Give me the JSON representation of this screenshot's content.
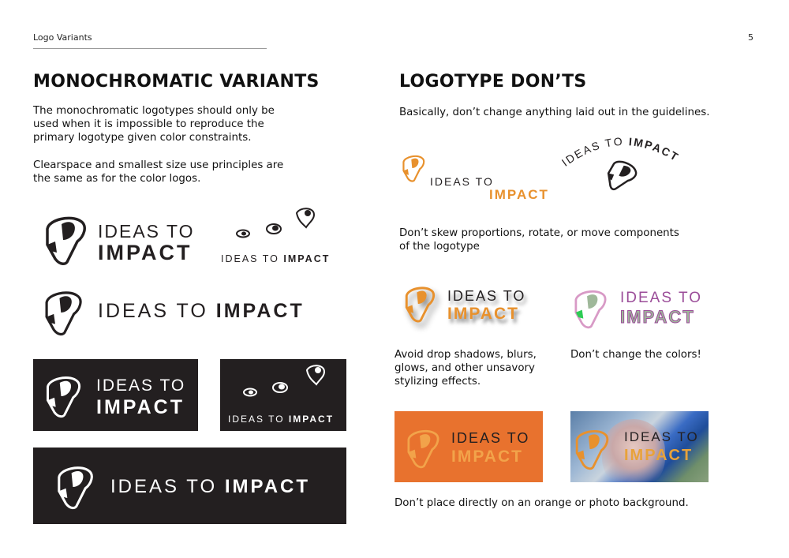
{
  "header": {
    "section_title": "Logo Variants",
    "page_number": "5"
  },
  "left": {
    "heading": "MONOCHROMATIC VARIANTS",
    "para1": [
      "The monochromatic logotypes should only be",
      "used when it is impossible to reproduce the",
      "primary logotype given color constraints."
    ],
    "para2": [
      "Clearspace and smallest size use principles are",
      "the same as for the color logos."
    ]
  },
  "right": {
    "heading": "LOGOTYPE DON’TS",
    "intro": "Basically, don’t change anything laid out in the guidelines.",
    "skew_caption": [
      "Don’t skew proportions, rotate, or move components",
      "of the logotype"
    ],
    "shadow_caption": [
      "Avoid drop shadows, blurs,",
      "glows, and other unsavory",
      "stylizing effects."
    ],
    "colors_caption": "Don’t change the colors!",
    "background_caption": "Don’t place directly on an orange or photo background."
  },
  "logo": {
    "ideas_to": "IDEAS TO",
    "impact": "IMPACT"
  },
  "colors": {
    "orange": "#e8912d",
    "orange_bg": "#e8722e",
    "purple": "#9b4d99",
    "pink": "#d89ac6",
    "sage": "#9fb89a",
    "green": "#2ecc55",
    "dark": "#231f20"
  }
}
